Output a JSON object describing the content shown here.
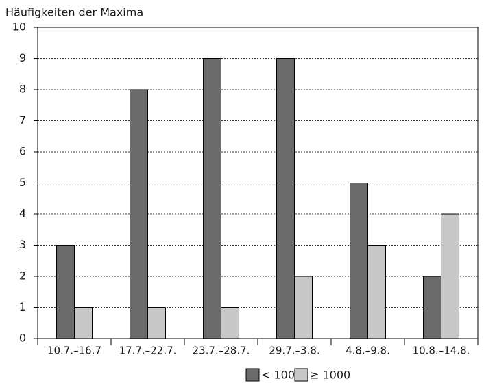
{
  "chart_data": {
    "type": "bar",
    "title": "Häufigkeiten der Maxima",
    "categories": [
      "10.7.–16.7",
      "17.7.–22.7.",
      "23.7.–28.7.",
      "29.7.–3.8.",
      "4.8.–9.8.",
      "10.8.–14.8."
    ],
    "series": [
      {
        "name": "< 1000",
        "color": "#6b6b6b",
        "values": [
          3,
          8,
          9,
          9,
          5,
          2
        ]
      },
      {
        "name": "≥ 1000",
        "color": "#c8c8c8",
        "values": [
          1,
          1,
          1,
          2,
          3,
          4
        ]
      }
    ],
    "ylim": [
      0,
      10
    ],
    "yticks": [
      0,
      1,
      2,
      3,
      4,
      5,
      6,
      7,
      8,
      9,
      10
    ],
    "grid": true,
    "legend": "bottom"
  }
}
